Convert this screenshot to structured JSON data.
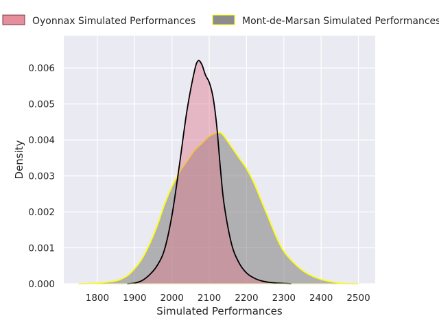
{
  "chart_data": {
    "type": "area",
    "title": "",
    "xlabel": "Simulated Performances",
    "ylabel": "Density",
    "xlim": [
      1710,
      2545
    ],
    "ylim": [
      0,
      0.0069
    ],
    "x_ticks": [
      1800,
      1900,
      2000,
      2100,
      2200,
      2300,
      2400,
      2500
    ],
    "x_tick_labels": [
      "1800",
      "1900",
      "2000",
      "2100",
      "2200",
      "2300",
      "2400",
      "2500"
    ],
    "y_ticks": [
      0,
      0.001,
      0.002,
      0.003,
      0.004,
      0.005,
      0.006
    ],
    "y_tick_labels": [
      "0.000",
      "0.001",
      "0.002",
      "0.003",
      "0.004",
      "0.005",
      "0.006"
    ],
    "grid": true,
    "legend_position": "top, outside plot",
    "series": [
      {
        "name": "Oyonnax Simulated Performances",
        "fill": "#e07a8b",
        "edge": "#000000",
        "x": [
          1880,
          1900,
          1920,
          1940,
          1960,
          1980,
          2000,
          2020,
          2040,
          2060,
          2070,
          2080,
          2090,
          2100,
          2110,
          2120,
          2130,
          2140,
          2160,
          2180,
          2200,
          2220,
          2240,
          2260,
          2280,
          2300,
          2320
        ],
        "y": [
          0.0,
          2e-05,
          9e-05,
          0.00025,
          0.0005,
          0.00095,
          0.0019,
          0.0033,
          0.0048,
          0.0059,
          0.0062,
          0.0061,
          0.0058,
          0.0056,
          0.0052,
          0.0044,
          0.0032,
          0.0022,
          0.0011,
          0.00058,
          0.0003,
          0.00016,
          8e-05,
          4e-05,
          2e-05,
          1e-05,
          0.0
        ]
      },
      {
        "name": "Mont-de-Marsan Simulated Performances",
        "fill": "#808080",
        "edge": "#ffff00",
        "x": [
          1750,
          1800,
          1850,
          1880,
          1900,
          1920,
          1940,
          1960,
          1980,
          2000,
          2020,
          2040,
          2060,
          2080,
          2100,
          2120,
          2130,
          2140,
          2160,
          2180,
          2200,
          2220,
          2240,
          2260,
          2280,
          2300,
          2330,
          2360,
          2400,
          2450,
          2500
        ],
        "y": [
          0.0,
          2e-05,
          8e-05,
          0.00022,
          0.00042,
          0.0007,
          0.0011,
          0.0016,
          0.0022,
          0.0027,
          0.0031,
          0.0034,
          0.0037,
          0.0039,
          0.0041,
          0.0042,
          0.0042,
          0.0041,
          0.0038,
          0.0035,
          0.0032,
          0.0028,
          0.0023,
          0.0018,
          0.0013,
          0.0009,
          0.00055,
          0.0003,
          0.00012,
          2e-05,
          0.0
        ]
      }
    ]
  }
}
